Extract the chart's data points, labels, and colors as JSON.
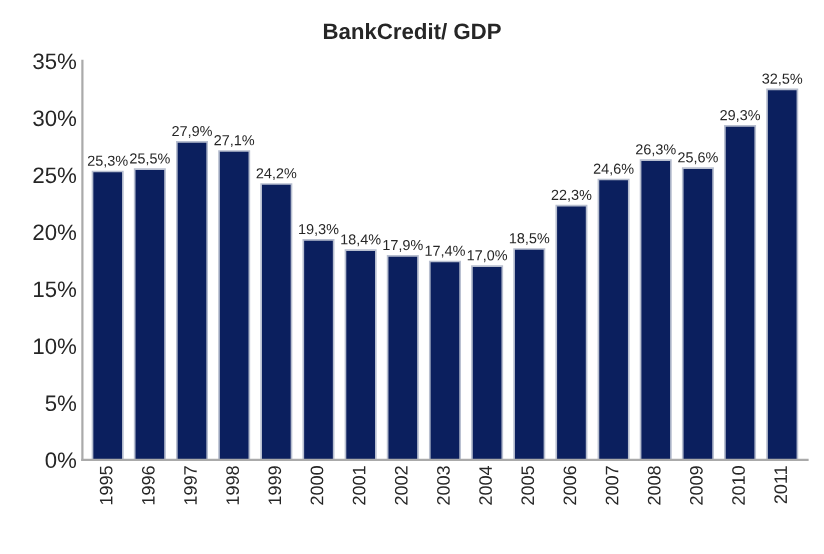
{
  "chart_data": {
    "type": "bar",
    "title": "BankCredit/ GDP",
    "categories": [
      "1995",
      "1996",
      "1997",
      "1998",
      "1999",
      "2000",
      "2001",
      "2002",
      "2003",
      "2004",
      "2005",
      "2006",
      "2007",
      "2008",
      "2009",
      "2010",
      "2011"
    ],
    "values": [
      25.3,
      25.5,
      27.9,
      27.1,
      24.2,
      19.3,
      18.4,
      17.9,
      17.4,
      17.0,
      18.5,
      22.3,
      24.6,
      26.3,
      25.6,
      29.3,
      32.5
    ],
    "value_labels": [
      "25,3%",
      "25,5%",
      "27,9%",
      "27,1%",
      "24,2%",
      "19,3%",
      "18,4%",
      "17,9%",
      "17,4%",
      "17,0%",
      "18,5%",
      "22,3%",
      "24,6%",
      "26,3%",
      "25,6%",
      "29,3%",
      "32,5%"
    ],
    "color": "#0b1f5e",
    "ylim": [
      0,
      35
    ],
    "yticks": [
      {
        "value": 0,
        "label": "0%"
      },
      {
        "value": 5,
        "label": "5%"
      },
      {
        "value": 10,
        "label": "10%"
      },
      {
        "value": 15,
        "label": "15%"
      },
      {
        "value": 20,
        "label": "20%"
      },
      {
        "value": 25,
        "label": "25%"
      },
      {
        "value": 30,
        "label": "30%"
      },
      {
        "value": 35,
        "label": "35%"
      }
    ],
    "grid": false
  }
}
